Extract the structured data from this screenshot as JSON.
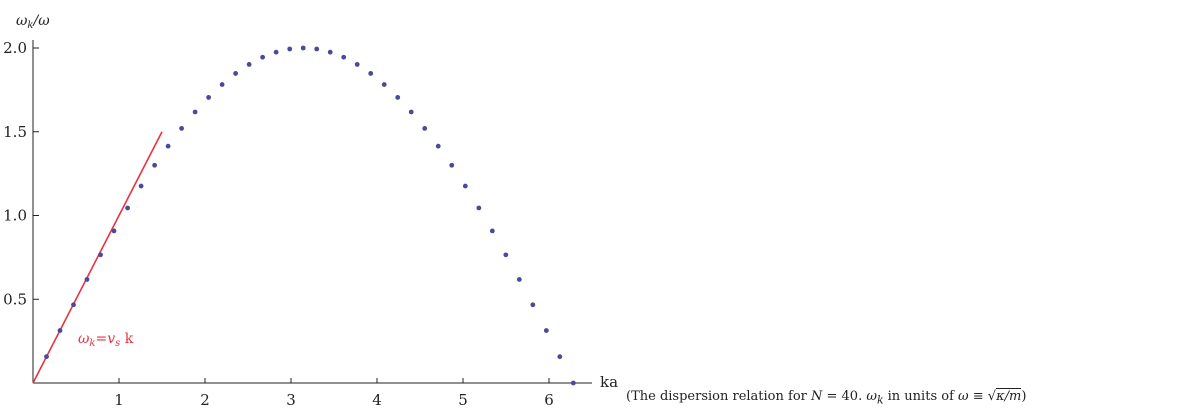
{
  "chart_data": {
    "type": "scatter",
    "ylabel": "ωk/ω",
    "xlabel": "ka",
    "xlim": [
      0,
      6.4
    ],
    "ylim": [
      0,
      2.0
    ],
    "x_ticks": [
      1,
      2,
      3,
      4,
      5,
      6
    ],
    "y_ticks": [
      0.5,
      1.0,
      1.5,
      2.0
    ],
    "y_tick_labels": [
      "0.5",
      "1.0",
      "1.5",
      "2.0"
    ],
    "grid": false,
    "point_color": "#4a4a9a",
    "line_color": "#e8333f",
    "annotation": "ωk=vs k",
    "linear_line": {
      "x": [
        0,
        1.5
      ],
      "y": [
        0,
        1.5
      ]
    },
    "points": {
      "x": [
        0.157,
        0.314,
        0.471,
        0.628,
        0.785,
        0.942,
        1.1,
        1.257,
        1.414,
        1.571,
        1.728,
        1.885,
        2.042,
        2.199,
        2.356,
        2.513,
        2.67,
        2.827,
        2.985,
        3.142,
        3.299,
        3.456,
        3.613,
        3.77,
        3.927,
        4.084,
        4.241,
        4.398,
        4.555,
        4.712,
        4.869,
        5.027,
        5.184,
        5.341,
        5.498,
        5.655,
        5.812,
        5.969,
        6.126,
        6.283
      ],
      "y": [
        0.157,
        0.313,
        0.467,
        0.618,
        0.765,
        0.908,
        1.045,
        1.176,
        1.3,
        1.414,
        1.52,
        1.618,
        1.705,
        1.782,
        1.848,
        1.902,
        1.945,
        1.975,
        1.994,
        2.0,
        1.994,
        1.975,
        1.945,
        1.902,
        1.848,
        1.782,
        1.705,
        1.618,
        1.52,
        1.414,
        1.3,
        1.176,
        1.045,
        0.908,
        0.765,
        0.618,
        0.467,
        0.313,
        0.157,
        0.0
      ]
    }
  },
  "caption": {
    "prefix": "(The dispersion relation for ",
    "n_var": "N",
    "n_eq": " = 40. ",
    "omega_k": "ω",
    "omega_k_sub": "k",
    "units_text": " in units of ",
    "omega": "ω",
    "equiv": " ≡ ",
    "sqrt_content": "κ/m",
    "suffix": ")"
  }
}
